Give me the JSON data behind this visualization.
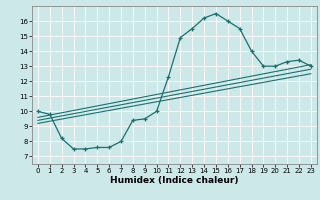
{
  "xlabel": "Humidex (Indice chaleur)",
  "bg_color": "#cce8e8",
  "line_color": "#1a7070",
  "grid_color": "#ffffff",
  "grid_pink": "#e8c8c8",
  "xlim": [
    -0.5,
    23.5
  ],
  "ylim": [
    6.5,
    17.0
  ],
  "xticks": [
    0,
    1,
    2,
    3,
    4,
    5,
    6,
    7,
    8,
    9,
    10,
    11,
    12,
    13,
    14,
    15,
    16,
    17,
    18,
    19,
    20,
    21,
    22,
    23
  ],
  "yticks": [
    7,
    8,
    9,
    10,
    11,
    12,
    13,
    14,
    15,
    16
  ],
  "curve_x": [
    0,
    1,
    2,
    3,
    4,
    5,
    6,
    7,
    8,
    9,
    10,
    11,
    12,
    13,
    14,
    15,
    16,
    17,
    18,
    19,
    20,
    21,
    22,
    23
  ],
  "curve_y": [
    10.0,
    9.8,
    8.2,
    7.5,
    7.5,
    7.6,
    7.6,
    8.0,
    9.4,
    9.5,
    10.0,
    12.3,
    14.9,
    15.5,
    16.2,
    16.5,
    16.0,
    15.5,
    14.0,
    13.0,
    13.0,
    13.3,
    13.4,
    13.0
  ],
  "line1_x": [
    0,
    23
  ],
  "line1_y": [
    9.6,
    13.1
  ],
  "line2_x": [
    0,
    23
  ],
  "line2_y": [
    9.4,
    12.8
  ],
  "line3_x": [
    0,
    23
  ],
  "line3_y": [
    9.2,
    12.5
  ]
}
